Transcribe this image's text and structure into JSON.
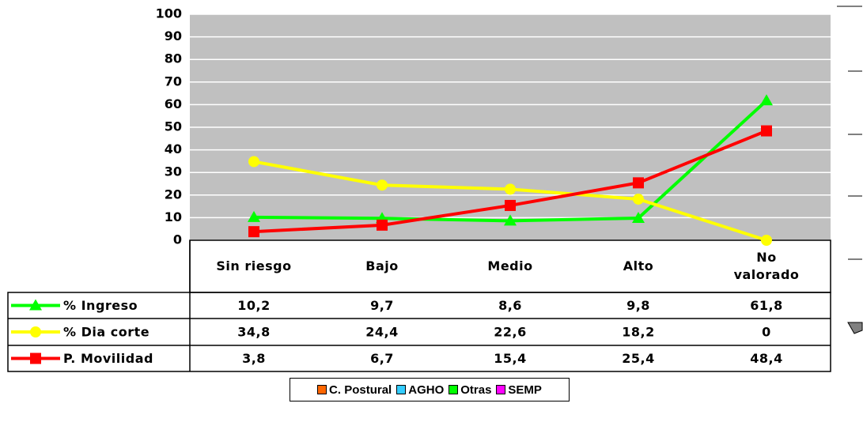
{
  "chart_data": {
    "type": "line",
    "categories": [
      "Sin riesgo",
      "Bajo",
      "Medio",
      "Alto",
      "No valorado"
    ],
    "series": [
      {
        "name": "% Ingreso",
        "color": "#00ff00",
        "marker": "triangle",
        "values": [
          10.2,
          9.7,
          8.6,
          9.8,
          61.8
        ],
        "value_labels": [
          "10,2",
          "9,7",
          "8,6",
          "9,8",
          "61,8"
        ]
      },
      {
        "name": "% Dia corte",
        "color": "#ffff00",
        "marker": "circle",
        "values": [
          34.8,
          24.4,
          22.6,
          18.2,
          0
        ],
        "value_labels": [
          "34,8",
          "24,4",
          "22,6",
          "18,2",
          "0"
        ]
      },
      {
        "name": "P. Movilidad",
        "color": "#ff0000",
        "marker": "square",
        "values": [
          3.8,
          6.7,
          15.4,
          25.4,
          48.4
        ],
        "value_labels": [
          "3,8",
          "6,7",
          "15,4",
          "25,4",
          "48,4"
        ]
      }
    ],
    "ylim": [
      0,
      100
    ],
    "yticks": [
      0,
      10,
      20,
      30,
      40,
      50,
      60,
      70,
      80,
      90,
      100
    ],
    "grid": true,
    "plot_background": "#c0c0c0"
  },
  "legend2": {
    "items": [
      {
        "name": "C. Postural",
        "color": "#ff6600"
      },
      {
        "name": "AGHO",
        "color": "#33ccff"
      },
      {
        "name": "Otras",
        "color": "#00ff00"
      },
      {
        "name": "SEMP",
        "color": "#ff00ff"
      }
    ]
  }
}
